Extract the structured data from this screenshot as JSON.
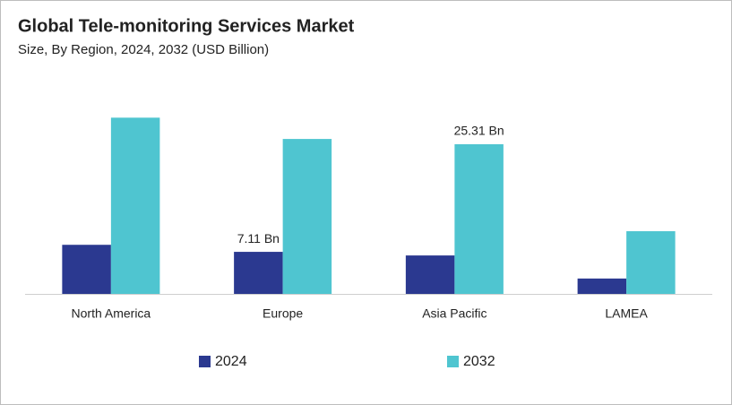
{
  "chart_data": {
    "type": "bar",
    "title": "Global Tele-monitoring Services Market",
    "subtitle": "Size, By Region, 2024, 2032 (USD Billion)",
    "categories": [
      "North America",
      "Europe",
      "Asia Pacific",
      "LAMEA"
    ],
    "series": [
      {
        "name": "2024",
        "color": "#2b3990",
        "values": [
          8.3,
          7.11,
          6.5,
          2.6
        ],
        "value_labels": [
          null,
          "7.11 Bn",
          null,
          null
        ]
      },
      {
        "name": "2032",
        "color": "#4fc5d0",
        "values": [
          29.8,
          26.2,
          25.31,
          10.6
        ],
        "value_labels": [
          null,
          null,
          "25.31 Bn",
          null
        ]
      }
    ],
    "ylim": [
      0,
      30
    ]
  }
}
